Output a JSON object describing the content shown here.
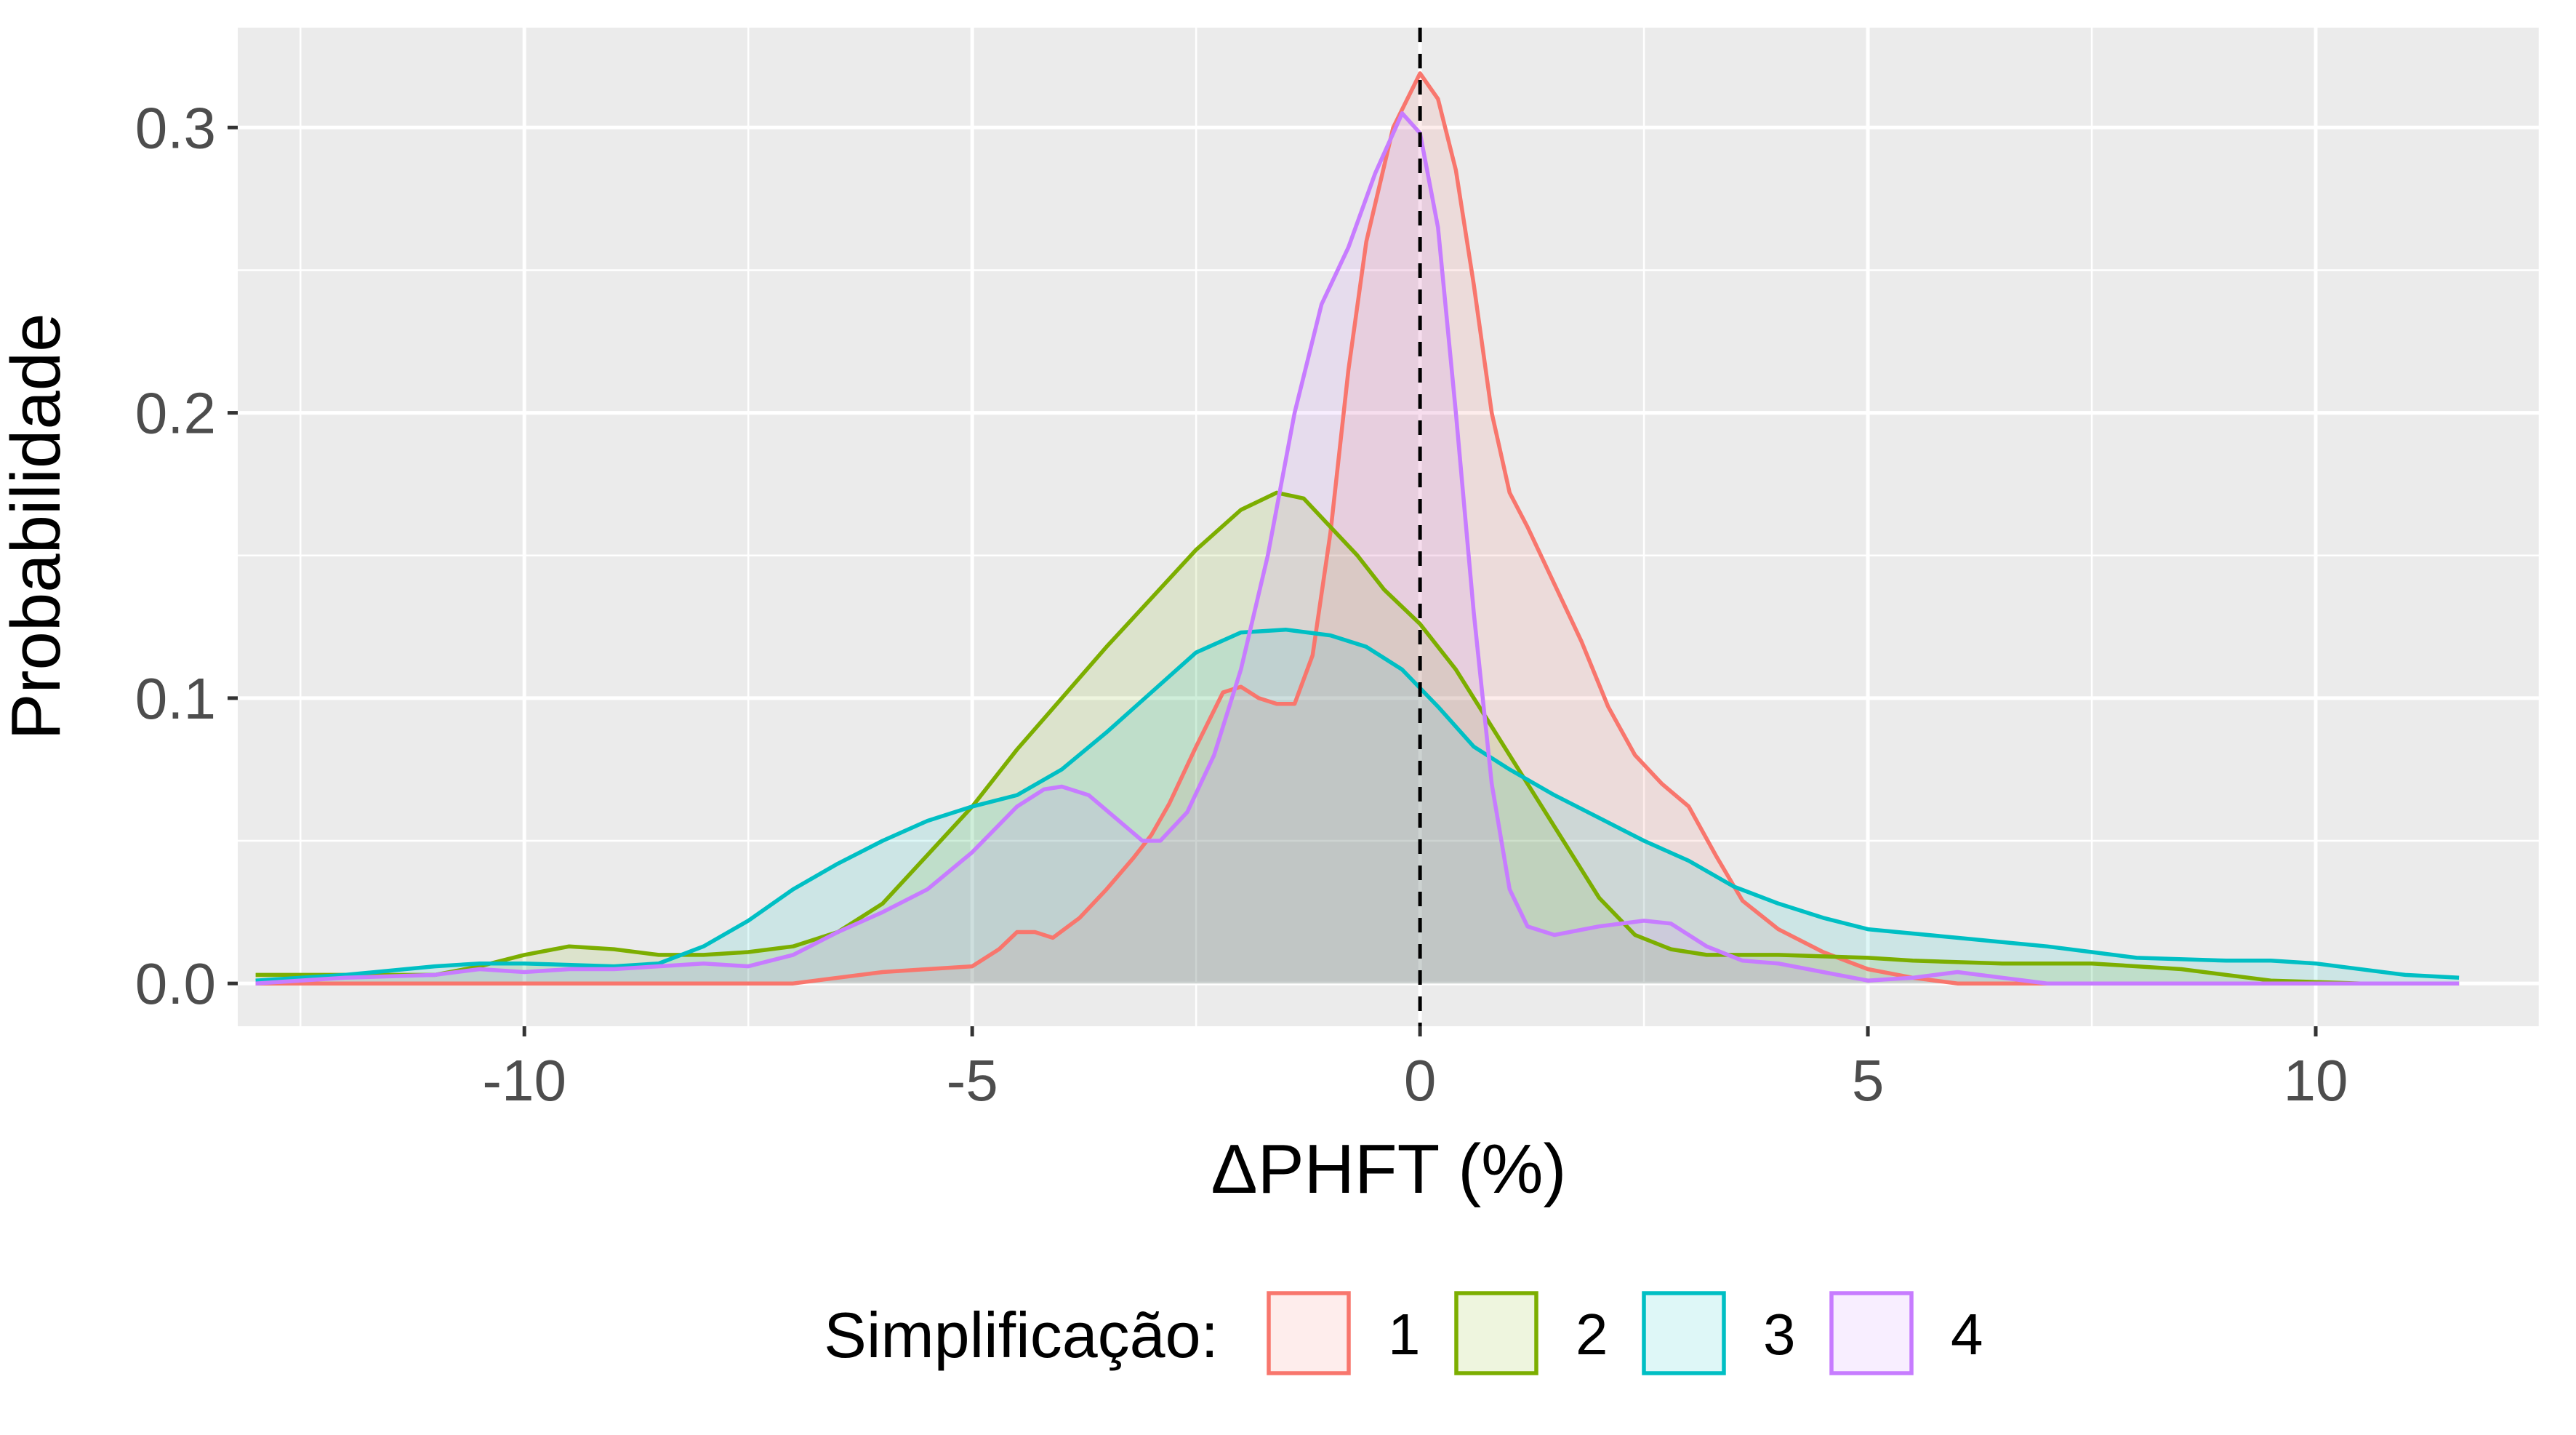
{
  "chart_data": {
    "type": "area",
    "xlabel": "ΔPHFT (%)",
    "ylabel": "Probabilidade",
    "xlim": [
      -13.2,
      12.5
    ],
    "ylim": [
      -0.015,
      0.335
    ],
    "x_ticks": [
      -10,
      -5,
      0,
      5,
      10
    ],
    "x_tick_labels": [
      "-10",
      "-5",
      "0",
      "5",
      "10"
    ],
    "y_ticks": [
      0.0,
      0.1,
      0.2,
      0.3
    ],
    "y_tick_labels": [
      "0.0",
      "0.1",
      "0.2",
      "0.3"
    ],
    "grid": true,
    "reference_line": {
      "x": 0,
      "style": "dashed",
      "color": "#000000"
    },
    "legend": {
      "title": "Simplificação:",
      "position": "bottom",
      "labels": [
        "1",
        "2",
        "3",
        "4"
      ]
    },
    "series": [
      {
        "name": "1",
        "color": "#F8766D",
        "points": [
          [
            -13,
            0.0
          ],
          [
            -10,
            0.0
          ],
          [
            -8,
            0.0
          ],
          [
            -7,
            0.0
          ],
          [
            -6.5,
            0.002
          ],
          [
            -6,
            0.004
          ],
          [
            -5.5,
            0.005
          ],
          [
            -5,
            0.006
          ],
          [
            -4.7,
            0.012
          ],
          [
            -4.5,
            0.018
          ],
          [
            -4.3,
            0.018
          ],
          [
            -4.1,
            0.016
          ],
          [
            -3.8,
            0.023
          ],
          [
            -3.5,
            0.033
          ],
          [
            -3.2,
            0.044
          ],
          [
            -3.0,
            0.052
          ],
          [
            -2.8,
            0.063
          ],
          [
            -2.5,
            0.083
          ],
          [
            -2.2,
            0.102
          ],
          [
            -2.0,
            0.104
          ],
          [
            -1.8,
            0.1
          ],
          [
            -1.6,
            0.098
          ],
          [
            -1.4,
            0.098
          ],
          [
            -1.2,
            0.115
          ],
          [
            -1.0,
            0.158
          ],
          [
            -0.8,
            0.215
          ],
          [
            -0.6,
            0.26
          ],
          [
            -0.3,
            0.3
          ],
          [
            0.0,
            0.319
          ],
          [
            0.2,
            0.31
          ],
          [
            0.4,
            0.285
          ],
          [
            0.6,
            0.245
          ],
          [
            0.8,
            0.2
          ],
          [
            1.0,
            0.172
          ],
          [
            1.2,
            0.16
          ],
          [
            1.5,
            0.14
          ],
          [
            1.8,
            0.12
          ],
          [
            2.1,
            0.097
          ],
          [
            2.4,
            0.08
          ],
          [
            2.7,
            0.07
          ],
          [
            3.0,
            0.062
          ],
          [
            3.3,
            0.045
          ],
          [
            3.6,
            0.029
          ],
          [
            4.0,
            0.019
          ],
          [
            4.5,
            0.011
          ],
          [
            5.0,
            0.005
          ],
          [
            5.5,
            0.002
          ],
          [
            6,
            0.0
          ],
          [
            8,
            0.0
          ],
          [
            10,
            0.0
          ],
          [
            11.6,
            0.0
          ]
        ]
      },
      {
        "name": "2",
        "color": "#7CAE00",
        "points": [
          [
            -13,
            0.003
          ],
          [
            -12,
            0.003
          ],
          [
            -11,
            0.003
          ],
          [
            -10.5,
            0.006
          ],
          [
            -10.0,
            0.01
          ],
          [
            -9.5,
            0.013
          ],
          [
            -9.0,
            0.012
          ],
          [
            -8.5,
            0.01
          ],
          [
            -8.0,
            0.01
          ],
          [
            -7.5,
            0.011
          ],
          [
            -7.0,
            0.013
          ],
          [
            -6.5,
            0.018
          ],
          [
            -6.0,
            0.028
          ],
          [
            -5.5,
            0.045
          ],
          [
            -5.0,
            0.062
          ],
          [
            -4.5,
            0.082
          ],
          [
            -4.0,
            0.1
          ],
          [
            -3.5,
            0.118
          ],
          [
            -3.0,
            0.135
          ],
          [
            -2.5,
            0.152
          ],
          [
            -2.0,
            0.166
          ],
          [
            -1.6,
            0.172
          ],
          [
            -1.3,
            0.17
          ],
          [
            -1.0,
            0.16
          ],
          [
            -0.7,
            0.15
          ],
          [
            -0.4,
            0.138
          ],
          [
            0.0,
            0.126
          ],
          [
            0.4,
            0.11
          ],
          [
            0.8,
            0.09
          ],
          [
            1.2,
            0.07
          ],
          [
            1.6,
            0.05
          ],
          [
            2.0,
            0.03
          ],
          [
            2.4,
            0.017
          ],
          [
            2.8,
            0.012
          ],
          [
            3.2,
            0.01
          ],
          [
            4.0,
            0.01
          ],
          [
            5.0,
            0.009
          ],
          [
            5.5,
            0.008
          ],
          [
            6.5,
            0.007
          ],
          [
            7.5,
            0.007
          ],
          [
            8.5,
            0.005
          ],
          [
            9.5,
            0.001
          ],
          [
            10.5,
            0.0
          ],
          [
            11.6,
            0.0
          ]
        ]
      },
      {
        "name": "3",
        "color": "#00BFC4",
        "points": [
          [
            -13,
            0.001
          ],
          [
            -12,
            0.003
          ],
          [
            -11,
            0.006
          ],
          [
            -10.5,
            0.007
          ],
          [
            -10,
            0.007
          ],
          [
            -9,
            0.006
          ],
          [
            -8.5,
            0.007
          ],
          [
            -8.0,
            0.013
          ],
          [
            -7.5,
            0.022
          ],
          [
            -7.0,
            0.033
          ],
          [
            -6.5,
            0.042
          ],
          [
            -6.0,
            0.05
          ],
          [
            -5.5,
            0.057
          ],
          [
            -5.0,
            0.062
          ],
          [
            -4.5,
            0.066
          ],
          [
            -4.0,
            0.075
          ],
          [
            -3.5,
            0.088
          ],
          [
            -3.0,
            0.102
          ],
          [
            -2.5,
            0.116
          ],
          [
            -2.0,
            0.123
          ],
          [
            -1.5,
            0.124
          ],
          [
            -1.0,
            0.122
          ],
          [
            -0.6,
            0.118
          ],
          [
            -0.2,
            0.11
          ],
          [
            0.2,
            0.097
          ],
          [
            0.6,
            0.083
          ],
          [
            1.0,
            0.075
          ],
          [
            1.5,
            0.066
          ],
          [
            2.0,
            0.058
          ],
          [
            2.5,
            0.05
          ],
          [
            3.0,
            0.043
          ],
          [
            3.5,
            0.034
          ],
          [
            4.0,
            0.028
          ],
          [
            4.5,
            0.023
          ],
          [
            5.0,
            0.019
          ],
          [
            6.0,
            0.016
          ],
          [
            7.0,
            0.013
          ],
          [
            7.5,
            0.011
          ],
          [
            8.0,
            0.009
          ],
          [
            9.0,
            0.008
          ],
          [
            9.5,
            0.008
          ],
          [
            10.0,
            0.007
          ],
          [
            11.0,
            0.003
          ],
          [
            11.6,
            0.002
          ]
        ]
      },
      {
        "name": "4",
        "color": "#C77CFF",
        "points": [
          [
            -13,
            0.0
          ],
          [
            -12,
            0.002
          ],
          [
            -11,
            0.003
          ],
          [
            -10.5,
            0.005
          ],
          [
            -10.0,
            0.004
          ],
          [
            -9.5,
            0.005
          ],
          [
            -9.0,
            0.005
          ],
          [
            -8.5,
            0.006
          ],
          [
            -8.0,
            0.007
          ],
          [
            -7.5,
            0.006
          ],
          [
            -7.0,
            0.01
          ],
          [
            -6.5,
            0.018
          ],
          [
            -6.0,
            0.025
          ],
          [
            -5.5,
            0.033
          ],
          [
            -5.0,
            0.046
          ],
          [
            -4.5,
            0.062
          ],
          [
            -4.2,
            0.068
          ],
          [
            -4.0,
            0.069
          ],
          [
            -3.7,
            0.066
          ],
          [
            -3.4,
            0.058
          ],
          [
            -3.1,
            0.05
          ],
          [
            -2.9,
            0.05
          ],
          [
            -2.6,
            0.06
          ],
          [
            -2.3,
            0.08
          ],
          [
            -2.0,
            0.11
          ],
          [
            -1.7,
            0.15
          ],
          [
            -1.4,
            0.2
          ],
          [
            -1.1,
            0.238
          ],
          [
            -0.8,
            0.258
          ],
          [
            -0.5,
            0.284
          ],
          [
            -0.2,
            0.305
          ],
          [
            0.0,
            0.298
          ],
          [
            0.2,
            0.265
          ],
          [
            0.4,
            0.2
          ],
          [
            0.6,
            0.13
          ],
          [
            0.8,
            0.07
          ],
          [
            1.0,
            0.033
          ],
          [
            1.2,
            0.02
          ],
          [
            1.5,
            0.017
          ],
          [
            2.0,
            0.02
          ],
          [
            2.5,
            0.022
          ],
          [
            2.8,
            0.021
          ],
          [
            3.2,
            0.013
          ],
          [
            3.6,
            0.008
          ],
          [
            4.0,
            0.007
          ],
          [
            4.5,
            0.004
          ],
          [
            5.0,
            0.001
          ],
          [
            5.5,
            0.002
          ],
          [
            6.0,
            0.004
          ],
          [
            6.5,
            0.002
          ],
          [
            7.0,
            0.0
          ],
          [
            9.0,
            0.0
          ],
          [
            11.6,
            0.0
          ]
        ]
      }
    ]
  }
}
